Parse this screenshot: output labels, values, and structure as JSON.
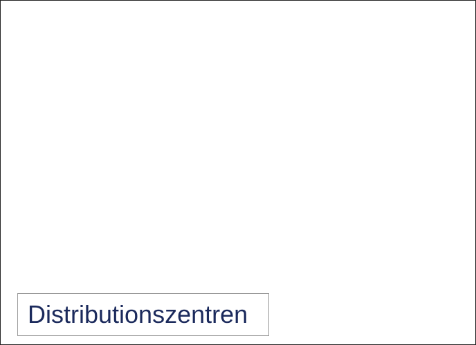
{
  "caption": "Distributionszentren"
}
